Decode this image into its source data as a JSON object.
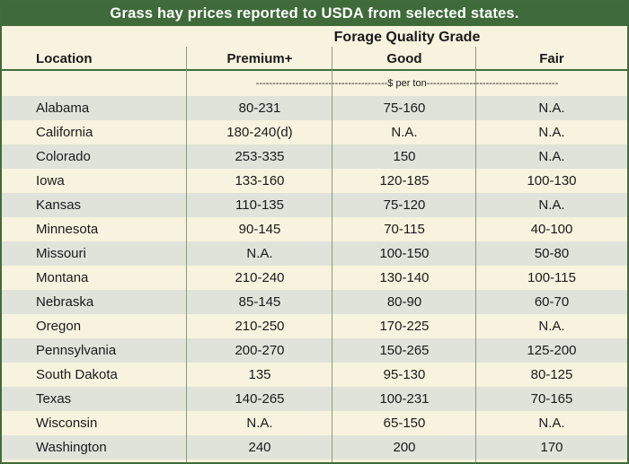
{
  "title": "Grass hay prices reported to USDA from selected states.",
  "header": {
    "group_label": "Forage Quality Grade",
    "location_label": "Location",
    "columns": [
      "Premium+",
      "Good",
      "Fair"
    ]
  },
  "units_label": "----------------------------------------$ per ton----------------------------------------",
  "rows": [
    {
      "location": "Alabama",
      "premium": "80-231",
      "good": "75-160",
      "fair": "N.A."
    },
    {
      "location": "California",
      "premium": "180-240(d)",
      "good": "N.A.",
      "fair": "N.A."
    },
    {
      "location": "Colorado",
      "premium": "253-335",
      "good": "150",
      "fair": "N.A."
    },
    {
      "location": "Iowa",
      "premium": "133-160",
      "good": "120-185",
      "fair": "100-130"
    },
    {
      "location": "Kansas",
      "premium": "110-135",
      "good": "75-120",
      "fair": "N.A."
    },
    {
      "location": "Minnesota",
      "premium": "90-145",
      "good": "70-115",
      "fair": "40-100"
    },
    {
      "location": "Missouri",
      "premium": "N.A.",
      "good": "100-150",
      "fair": "50-80"
    },
    {
      "location": "Montana",
      "premium": "210-240",
      "good": "130-140",
      "fair": "100-115"
    },
    {
      "location": "Nebraska",
      "premium": "85-145",
      "good": "80-90",
      "fair": "60-70"
    },
    {
      "location": "Oregon",
      "premium": "210-250",
      "good": "170-225",
      "fair": "N.A."
    },
    {
      "location": "Pennsylvania",
      "premium": "200-270",
      "good": "150-265",
      "fair": "125-200"
    },
    {
      "location": "South Dakota",
      "premium": "135",
      "good": "95-130",
      "fair": "80-125"
    },
    {
      "location": "Texas",
      "premium": "140-265",
      "good": "100-231",
      "fair": "70-165"
    },
    {
      "location": "Wisconsin",
      "premium": "N.A.",
      "good": "65-150",
      "fair": "N.A."
    },
    {
      "location": "Washington",
      "premium": "240",
      "good": "200",
      "fair": "170"
    }
  ],
  "colors": {
    "title_bg": "#3e6b39",
    "cream": "#f8f3de",
    "band": "#dfe3da"
  }
}
